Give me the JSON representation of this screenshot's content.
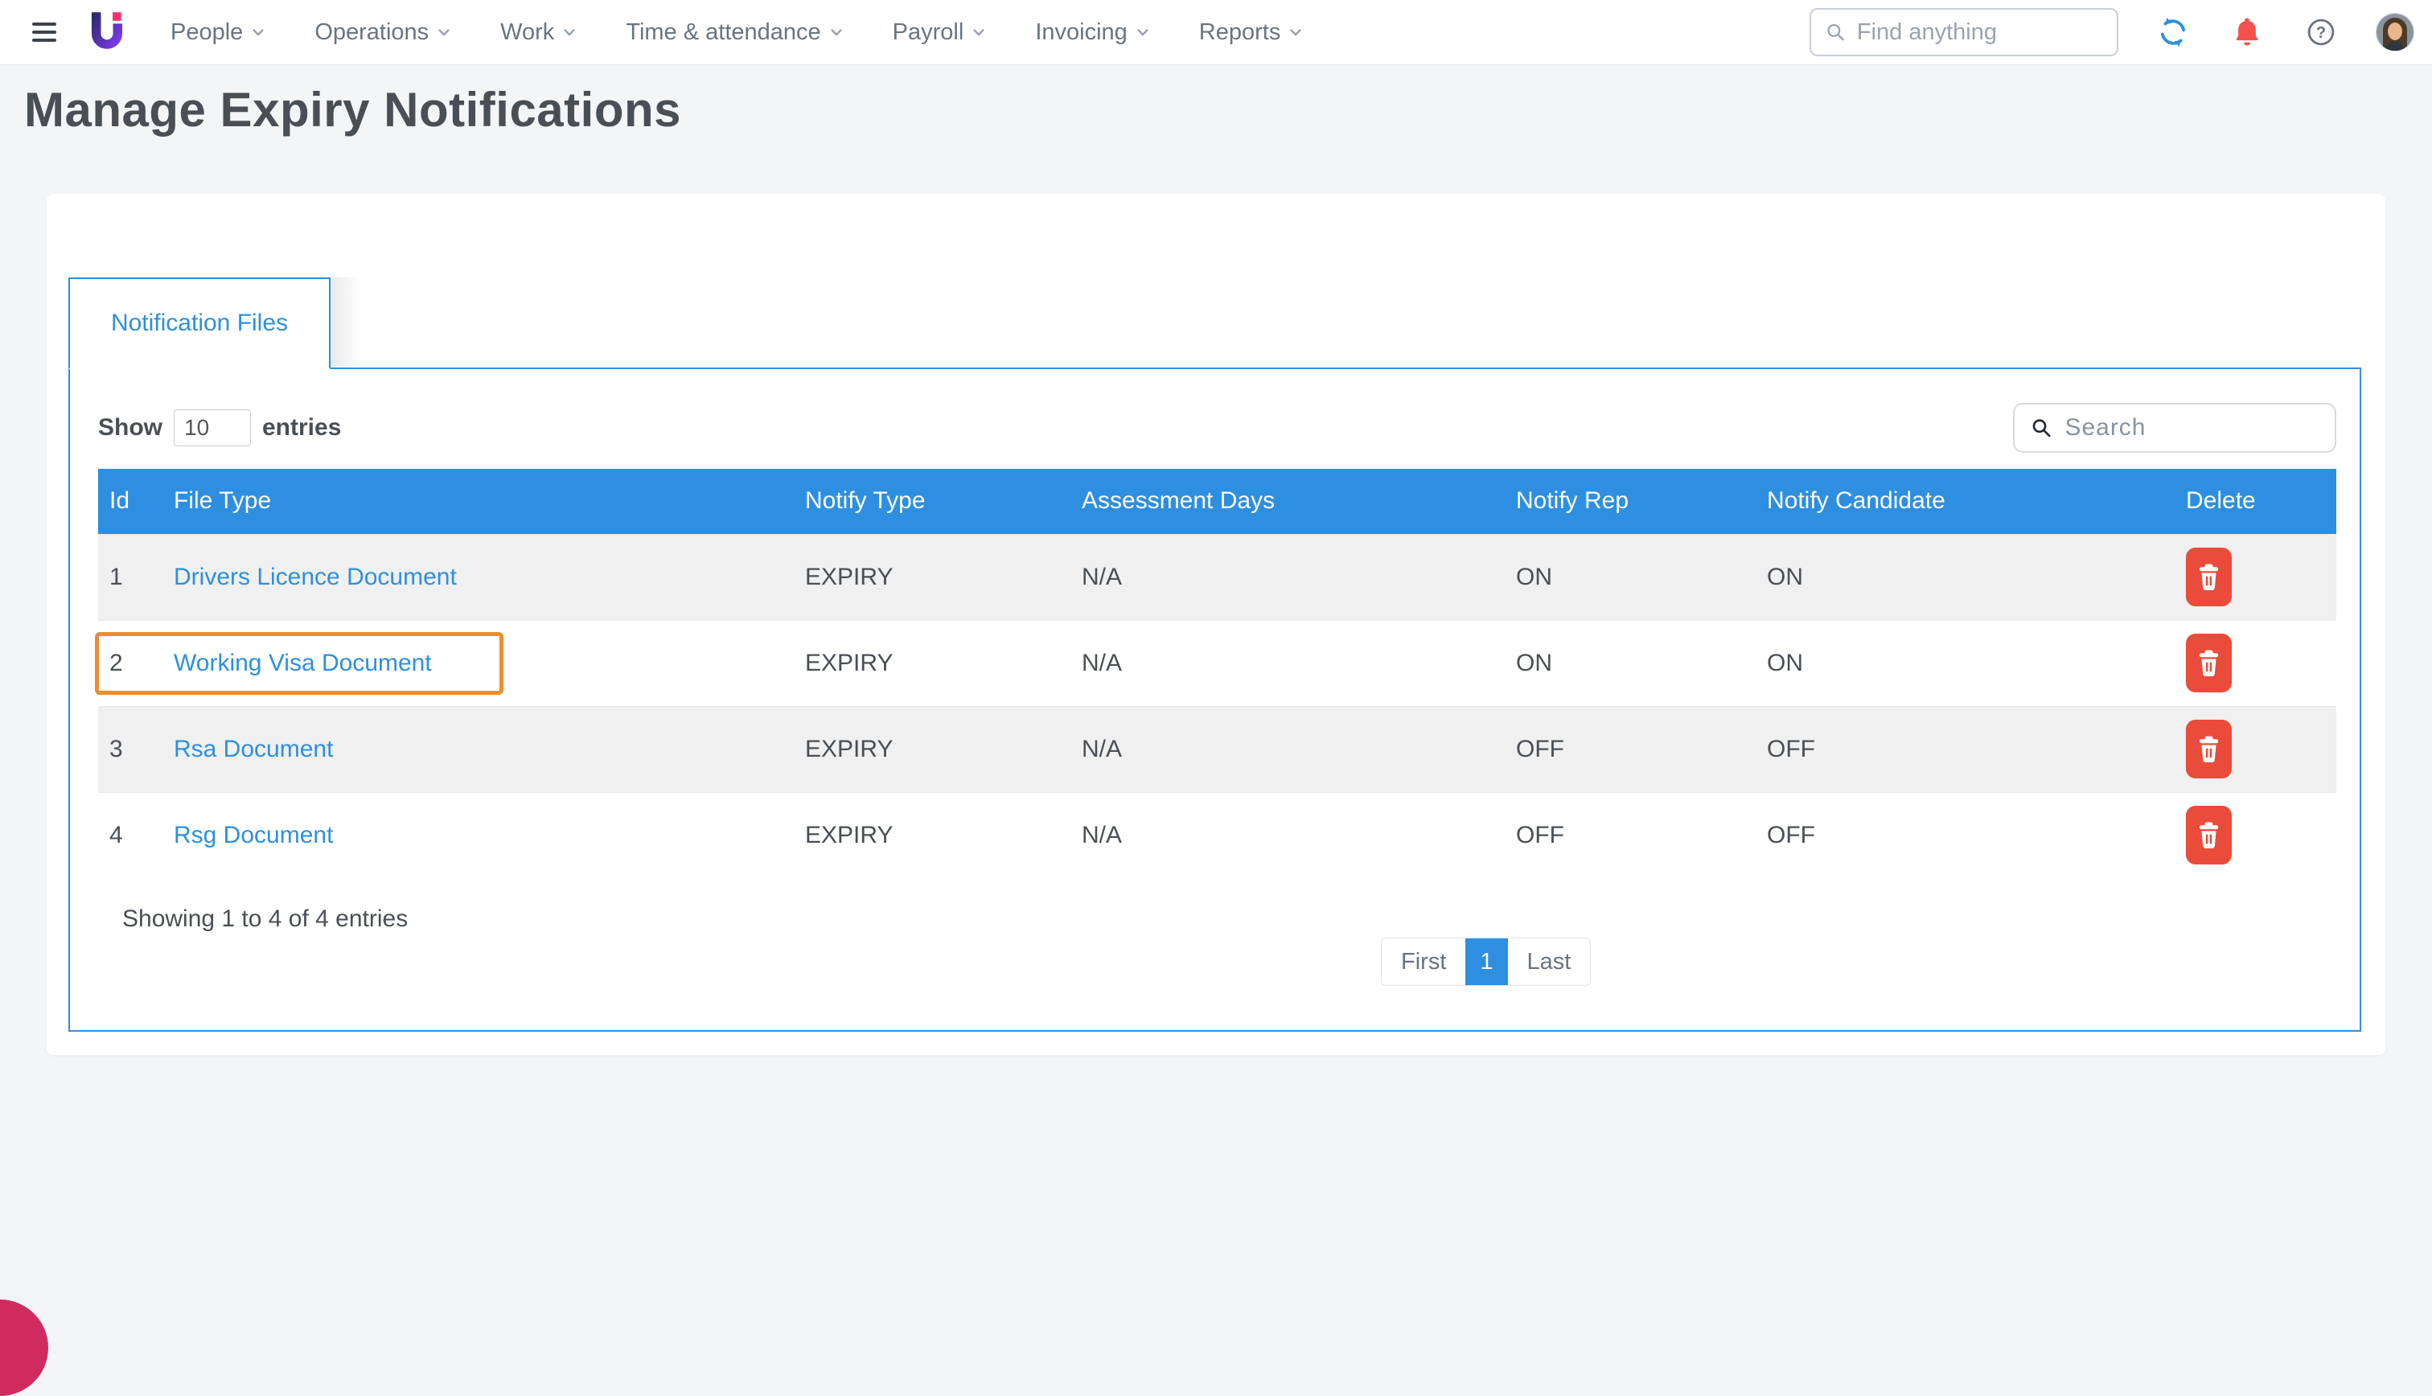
{
  "colors": {
    "accent": "#2E8FE0",
    "link": "#2E8FE0",
    "delete": "#EA4B3B",
    "highlight": "#EC8E2F",
    "bell": "#F4514C",
    "bubble": "#D02B5E",
    "header_text": "#FFFFFF",
    "row_gray": "#F0F0F0",
    "text_dark": "#4A4F55",
    "nav_text": "#6A7480"
  },
  "icons": {
    "hamburger": "hamburger-icon",
    "logo": "brand-logo",
    "chevron": "chevron-down-icon",
    "search": "search-icon",
    "sync": "sync-icon",
    "bell": "bell-icon",
    "help": "help-icon",
    "avatar": "avatar",
    "trash": "trash-icon"
  },
  "topbar": {
    "menu": [
      {
        "label": "People"
      },
      {
        "label": "Operations"
      },
      {
        "label": "Work"
      },
      {
        "label": "Time & attendance"
      },
      {
        "label": "Payroll"
      },
      {
        "label": "Invoicing"
      },
      {
        "label": "Reports"
      }
    ],
    "search": {
      "placeholder": "Find anything"
    }
  },
  "page": {
    "title": "Manage Expiry Notifications"
  },
  "panel": {
    "tab": "Notification Files",
    "show_label": "Show",
    "show_value": "10",
    "entries_label": "entries",
    "search_placeholder": "Search",
    "table": {
      "headers": [
        "Id",
        "File Type",
        "Notify Type",
        "Assessment Days",
        "Notify Rep",
        "Notify Candidate",
        "Delete"
      ],
      "rows": [
        {
          "id": "1",
          "file_type": "Drivers Licence Document",
          "notify_type": "EXPIRY",
          "assessment_days": "N/A",
          "notify_rep": "ON",
          "notify_candidate": "ON",
          "highlighted": false
        },
        {
          "id": "2",
          "file_type": "Working Visa Document",
          "notify_type": "EXPIRY",
          "assessment_days": "N/A",
          "notify_rep": "ON",
          "notify_candidate": "ON",
          "highlighted": true
        },
        {
          "id": "3",
          "file_type": "Rsa Document",
          "notify_type": "EXPIRY",
          "assessment_days": "N/A",
          "notify_rep": "OFF",
          "notify_candidate": "OFF",
          "highlighted": false
        },
        {
          "id": "4",
          "file_type": "Rsg Document",
          "notify_type": "EXPIRY",
          "assessment_days": "N/A",
          "notify_rep": "OFF",
          "notify_candidate": "OFF",
          "highlighted": false
        }
      ]
    },
    "footer": {
      "summary": "Showing 1 to 4 of 4 entries",
      "pagination": {
        "first": "First",
        "current": "1",
        "last": "Last"
      }
    }
  }
}
